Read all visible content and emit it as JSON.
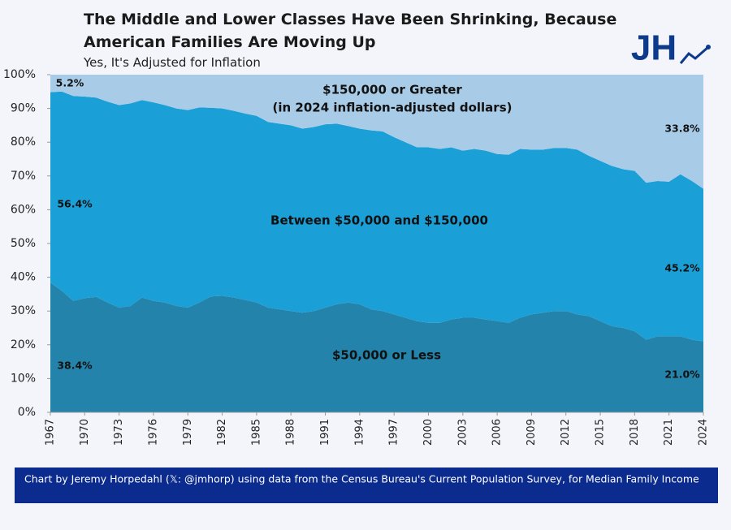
{
  "chart_data": {
    "type": "stacked_area",
    "title": "The Middle and Lower Classes Have Been Shrinking, Because American Families Are Moving Up",
    "subtitle": "Yes, It's Adjusted for Inflation",
    "logo": "JH",
    "annotation": "(in 2024 inflation-adjusted dollars)",
    "footer": "Chart by Jeremy Horpedahl (𝕏: @jmhorp) using data from the Census Bureau's Current Population Survey, for Median Family Income",
    "x": [
      1967,
      1968,
      1969,
      1970,
      1971,
      1972,
      1973,
      1974,
      1975,
      1976,
      1977,
      1978,
      1979,
      1980,
      1981,
      1982,
      1983,
      1984,
      1985,
      1986,
      1987,
      1988,
      1989,
      1990,
      1991,
      1992,
      1993,
      1994,
      1995,
      1996,
      1997,
      1998,
      1999,
      2000,
      2001,
      2002,
      2003,
      2004,
      2005,
      2006,
      2007,
      2008,
      2009,
      2010,
      2011,
      2012,
      2013,
      2014,
      2015,
      2016,
      2017,
      2018,
      2019,
      2020,
      2021,
      2022,
      2023,
      2024
    ],
    "xlim": [
      1967,
      2024
    ],
    "xticks": [
      1967,
      1970,
      1973,
      1976,
      1979,
      1982,
      1985,
      1988,
      1991,
      1994,
      1997,
      2000,
      2003,
      2006,
      2009,
      2012,
      2015,
      2018,
      2021,
      2024
    ],
    "ylim": [
      0,
      100
    ],
    "yticks": [
      {
        "value": 0,
        "label": "0%"
      },
      {
        "value": 10,
        "label": "10%"
      },
      {
        "value": 20,
        "label": "20%"
      },
      {
        "value": 30,
        "label": "30%"
      },
      {
        "value": 40,
        "label": "40%"
      },
      {
        "value": 50,
        "label": "50%"
      },
      {
        "value": 60,
        "label": "60%"
      },
      {
        "value": 70,
        "label": "70%"
      },
      {
        "value": 80,
        "label": "80%"
      },
      {
        "value": 90,
        "label": "90%"
      },
      {
        "value": 100,
        "label": "100%"
      }
    ],
    "series": [
      {
        "name": "$50,000 or Less",
        "color": "#2383ab",
        "values": [
          38.4,
          36,
          33,
          33.8,
          34.2,
          32.5,
          31,
          31.5,
          34,
          33,
          32.5,
          31.5,
          31,
          32.5,
          34.3,
          34.5,
          34,
          33.3,
          32.5,
          31,
          30.5,
          30,
          29.5,
          30,
          31,
          32,
          32.5,
          32,
          30.5,
          30,
          29,
          28,
          27,
          26.5,
          26.5,
          27.5,
          28,
          28,
          27.5,
          27,
          26.5,
          28,
          29,
          29.5,
          30,
          30,
          29,
          28.5,
          27,
          25.5,
          25,
          24,
          21.5,
          22.5,
          22.5,
          22.5,
          21.5,
          21.0
        ],
        "value_labels": [
          "38.4%",
          null,
          null,
          null,
          null,
          null,
          null,
          null,
          null,
          null,
          null,
          null,
          null,
          null,
          null,
          null,
          null,
          null,
          null,
          null,
          null,
          null,
          null,
          null,
          null,
          null,
          null,
          null,
          null,
          null,
          null,
          null,
          null,
          null,
          null,
          null,
          null,
          null,
          null,
          null,
          null,
          null,
          null,
          null,
          null,
          null,
          null,
          null,
          null,
          null,
          null,
          null,
          null,
          null,
          null,
          null,
          null,
          "21.0%"
        ]
      },
      {
        "name": "Between $50,000 and $150,000",
        "color": "#1a9fd6",
        "values": [
          56.4,
          59,
          60.7,
          59.7,
          59,
          59.5,
          60,
          60,
          58.5,
          58.8,
          58.5,
          58.5,
          58.5,
          57.8,
          55.9,
          55.5,
          55.3,
          55.2,
          55.3,
          55,
          55,
          55,
          54.5,
          54.5,
          54.3,
          53.5,
          52.3,
          52,
          53,
          53.2,
          52.5,
          52,
          51.5,
          52,
          51.5,
          51,
          49.5,
          50,
          50,
          49.5,
          49.8,
          50,
          48.8,
          48.3,
          48.3,
          48.3,
          48.8,
          47.5,
          47.5,
          47.5,
          47,
          47.5,
          46.5,
          46,
          45.8,
          48,
          47,
          45.2
        ],
        "value_labels": [
          "56.4%",
          null,
          null,
          null,
          null,
          null,
          null,
          null,
          null,
          null,
          null,
          null,
          null,
          null,
          null,
          null,
          null,
          null,
          null,
          null,
          null,
          null,
          null,
          null,
          null,
          null,
          null,
          null,
          null,
          null,
          null,
          null,
          null,
          null,
          null,
          null,
          null,
          null,
          null,
          null,
          null,
          null,
          null,
          null,
          null,
          null,
          null,
          null,
          null,
          null,
          null,
          null,
          null,
          null,
          null,
          null,
          null,
          "45.2%"
        ]
      },
      {
        "name": "$150,000 or Greater",
        "color": "#a8cbe7",
        "values": [
          5.2,
          5,
          6.3,
          6.5,
          6.8,
          8,
          9,
          8.5,
          7.5,
          8.2,
          9,
          10,
          10.5,
          9.7,
          9.8,
          10,
          10.7,
          11.5,
          12.2,
          14,
          14.5,
          15,
          16,
          15.5,
          14.7,
          14.5,
          15.2,
          16,
          16.5,
          16.8,
          18.5,
          20,
          21.5,
          21.5,
          22,
          21.5,
          22.5,
          22,
          22.5,
          23.5,
          23.7,
          22,
          22.2,
          22.2,
          21.7,
          21.7,
          22.2,
          24,
          25.5,
          27,
          28,
          28.5,
          32,
          31.5,
          31.7,
          29.5,
          31.5,
          33.8
        ],
        "value_labels": [
          "5.2%",
          null,
          null,
          null,
          null,
          null,
          null,
          null,
          null,
          null,
          null,
          null,
          null,
          null,
          null,
          null,
          null,
          null,
          null,
          null,
          null,
          null,
          null,
          null,
          null,
          null,
          null,
          null,
          null,
          null,
          null,
          null,
          null,
          null,
          null,
          null,
          null,
          null,
          null,
          null,
          null,
          null,
          null,
          null,
          null,
          null,
          null,
          null,
          null,
          null,
          null,
          null,
          null,
          null,
          null,
          null,
          null,
          "33.8%"
        ]
      }
    ]
  }
}
